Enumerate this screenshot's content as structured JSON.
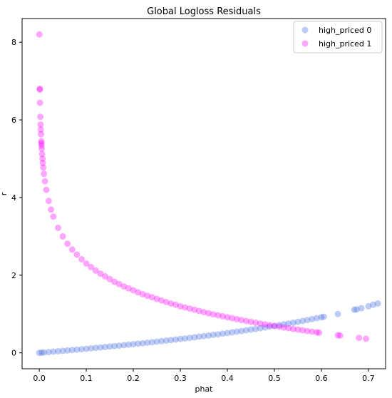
{
  "chart_data": {
    "type": "scatter",
    "title": "Global Logloss Residuals",
    "xlabel": "phat",
    "ylabel": "r",
    "xlim": [
      -0.0365,
      0.7365
    ],
    "ylim": [
      -0.41,
      8.61
    ],
    "xticks": [
      0.0,
      0.1,
      0.2,
      0.3,
      0.4,
      0.5,
      0.6,
      0.7
    ],
    "xtick_labels": [
      "0.0",
      "0.1",
      "0.2",
      "0.3",
      "0.4",
      "0.5",
      "0.6",
      "0.7"
    ],
    "yticks": [
      0,
      2,
      4,
      6,
      8
    ],
    "ytick_labels": [
      "0",
      "2",
      "4",
      "6",
      "8"
    ],
    "grid": false,
    "legend_position": "top-right",
    "series": [
      {
        "name": "high_priced 0",
        "color": "#4169e1",
        "alpha": 0.35,
        "points": [
          [
            0.0,
            0.0
          ],
          [
            0.005,
            0.005
          ],
          [
            0.01,
            0.01
          ],
          [
            0.02,
            0.02
          ],
          [
            0.03,
            0.03
          ],
          [
            0.04,
            0.041
          ],
          [
            0.05,
            0.051
          ],
          [
            0.06,
            0.062
          ],
          [
            0.07,
            0.073
          ],
          [
            0.08,
            0.083
          ],
          [
            0.09,
            0.094
          ],
          [
            0.1,
            0.105
          ],
          [
            0.11,
            0.117
          ],
          [
            0.12,
            0.128
          ],
          [
            0.13,
            0.139
          ],
          [
            0.14,
            0.151
          ],
          [
            0.15,
            0.163
          ],
          [
            0.16,
            0.174
          ],
          [
            0.17,
            0.186
          ],
          [
            0.18,
            0.198
          ],
          [
            0.19,
            0.211
          ],
          [
            0.2,
            0.223
          ],
          [
            0.21,
            0.236
          ],
          [
            0.22,
            0.248
          ],
          [
            0.23,
            0.261
          ],
          [
            0.24,
            0.274
          ],
          [
            0.25,
            0.288
          ],
          [
            0.26,
            0.301
          ],
          [
            0.27,
            0.315
          ],
          [
            0.28,
            0.329
          ],
          [
            0.29,
            0.342
          ],
          [
            0.3,
            0.357
          ],
          [
            0.31,
            0.371
          ],
          [
            0.32,
            0.386
          ],
          [
            0.33,
            0.4
          ],
          [
            0.34,
            0.416
          ],
          [
            0.35,
            0.431
          ],
          [
            0.36,
            0.446
          ],
          [
            0.37,
            0.462
          ],
          [
            0.38,
            0.478
          ],
          [
            0.39,
            0.494
          ],
          [
            0.4,
            0.511
          ],
          [
            0.41,
            0.528
          ],
          [
            0.42,
            0.545
          ],
          [
            0.43,
            0.562
          ],
          [
            0.44,
            0.58
          ],
          [
            0.45,
            0.598
          ],
          [
            0.46,
            0.616
          ],
          [
            0.47,
            0.635
          ],
          [
            0.48,
            0.654
          ],
          [
            0.49,
            0.673
          ],
          [
            0.5,
            0.693
          ],
          [
            0.51,
            0.713
          ],
          [
            0.52,
            0.734
          ],
          [
            0.53,
            0.755
          ],
          [
            0.54,
            0.777
          ],
          [
            0.55,
            0.799
          ],
          [
            0.56,
            0.821
          ],
          [
            0.57,
            0.844
          ],
          [
            0.58,
            0.868
          ],
          [
            0.59,
            0.892
          ],
          [
            0.6,
            0.916
          ],
          [
            0.605,
            0.929
          ],
          [
            0.635,
            1.0
          ],
          [
            0.67,
            1.11
          ],
          [
            0.675,
            1.12
          ],
          [
            0.685,
            1.15
          ],
          [
            0.7,
            1.2
          ],
          [
            0.71,
            1.24
          ],
          [
            0.72,
            1.27
          ]
        ]
      },
      {
        "name": "high_priced 1",
        "color": "#ff00ff",
        "alpha": 0.35,
        "points": [
          [
            0.0003,
            8.2
          ],
          [
            0.0011,
            6.8
          ],
          [
            0.0012,
            6.78
          ],
          [
            0.0016,
            6.44
          ],
          [
            0.0023,
            6.08
          ],
          [
            0.0028,
            5.88
          ],
          [
            0.0032,
            5.75
          ],
          [
            0.0036,
            5.63
          ],
          [
            0.0043,
            5.45
          ],
          [
            0.0045,
            5.4
          ],
          [
            0.0048,
            5.34
          ],
          [
            0.0052,
            5.26
          ],
          [
            0.006,
            5.12
          ],
          [
            0.0068,
            5.0
          ],
          [
            0.0075,
            4.89
          ],
          [
            0.0085,
            4.77
          ],
          [
            0.01,
            4.61
          ],
          [
            0.012,
            4.42
          ],
          [
            0.015,
            4.2
          ],
          [
            0.02,
            3.91
          ],
          [
            0.025,
            3.69
          ],
          [
            0.03,
            3.51
          ],
          [
            0.04,
            3.22
          ],
          [
            0.05,
            3.0
          ],
          [
            0.06,
            2.81
          ],
          [
            0.07,
            2.66
          ],
          [
            0.08,
            2.53
          ],
          [
            0.09,
            2.41
          ],
          [
            0.1,
            2.3
          ],
          [
            0.11,
            2.21
          ],
          [
            0.12,
            2.12
          ],
          [
            0.13,
            2.04
          ],
          [
            0.14,
            1.97
          ],
          [
            0.15,
            1.9
          ],
          [
            0.16,
            1.83
          ],
          [
            0.17,
            1.77
          ],
          [
            0.18,
            1.71
          ],
          [
            0.19,
            1.66
          ],
          [
            0.2,
            1.61
          ],
          [
            0.21,
            1.56
          ],
          [
            0.22,
            1.51
          ],
          [
            0.23,
            1.47
          ],
          [
            0.24,
            1.43
          ],
          [
            0.25,
            1.39
          ],
          [
            0.26,
            1.35
          ],
          [
            0.27,
            1.31
          ],
          [
            0.28,
            1.27
          ],
          [
            0.29,
            1.24
          ],
          [
            0.3,
            1.2
          ],
          [
            0.31,
            1.17
          ],
          [
            0.32,
            1.14
          ],
          [
            0.33,
            1.11
          ],
          [
            0.34,
            1.08
          ],
          [
            0.35,
            1.05
          ],
          [
            0.36,
            1.02
          ],
          [
            0.37,
            0.994
          ],
          [
            0.38,
            0.968
          ],
          [
            0.39,
            0.942
          ],
          [
            0.4,
            0.916
          ],
          [
            0.41,
            0.892
          ],
          [
            0.42,
            0.868
          ],
          [
            0.43,
            0.844
          ],
          [
            0.44,
            0.821
          ],
          [
            0.45,
            0.799
          ],
          [
            0.46,
            0.777
          ],
          [
            0.47,
            0.755
          ],
          [
            0.48,
            0.734
          ],
          [
            0.49,
            0.713
          ],
          [
            0.5,
            0.693
          ],
          [
            0.51,
            0.673
          ],
          [
            0.52,
            0.654
          ],
          [
            0.53,
            0.635
          ],
          [
            0.54,
            0.616
          ],
          [
            0.55,
            0.598
          ],
          [
            0.56,
            0.58
          ],
          [
            0.57,
            0.562
          ],
          [
            0.58,
            0.545
          ],
          [
            0.59,
            0.528
          ],
          [
            0.595,
            0.519
          ],
          [
            0.635,
            0.454
          ],
          [
            0.64,
            0.446
          ],
          [
            0.68,
            0.386
          ],
          [
            0.695,
            0.364
          ]
        ]
      }
    ]
  }
}
